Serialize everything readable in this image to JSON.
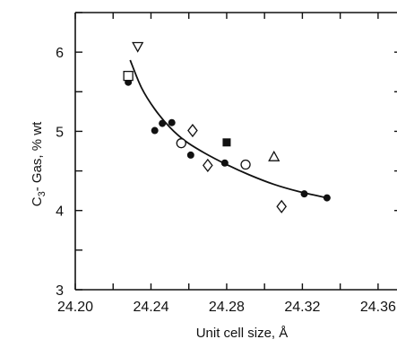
{
  "chart_data": {
    "type": "scatter",
    "title": "",
    "xlabel": "Unit cell size, Å",
    "ylabel_main": "C",
    "ylabel_sub": "3",
    "ylabel_rest": "- Gas, % wt",
    "xlim": [
      24.2,
      24.37
    ],
    "ylim": [
      3,
      6.5
    ],
    "x_ticks": [
      24.2,
      24.24,
      24.28,
      24.32,
      24.36
    ],
    "x_tick_labels": [
      "24.20",
      "24.24",
      "24.28",
      "24.32",
      "24.36"
    ],
    "y_ticks": [
      3,
      4,
      5,
      6
    ],
    "y_tick_labels": [
      "3",
      "4",
      "5",
      "6"
    ],
    "grid": false,
    "series": [
      {
        "marker": "filled-circle",
        "color": "#111111",
        "points": [
          [
            24.228,
            5.62
          ],
          [
            24.242,
            5.01
          ],
          [
            24.246,
            5.1
          ],
          [
            24.251,
            5.11
          ],
          [
            24.261,
            4.7
          ],
          [
            24.279,
            4.6
          ],
          [
            24.321,
            4.21
          ],
          [
            24.333,
            4.16
          ]
        ]
      },
      {
        "marker": "open-circle",
        "color": "#111111",
        "points": [
          [
            24.256,
            4.85
          ],
          [
            24.29,
            4.58
          ]
        ]
      },
      {
        "marker": "open-square",
        "color": "#111111",
        "points": [
          [
            24.228,
            5.7
          ]
        ]
      },
      {
        "marker": "filled-square",
        "color": "#111111",
        "points": [
          [
            24.28,
            4.86
          ]
        ]
      },
      {
        "marker": "open-triangle-down",
        "color": "#111111",
        "points": [
          [
            24.233,
            6.07
          ]
        ]
      },
      {
        "marker": "open-triangle-up",
        "color": "#111111",
        "points": [
          [
            24.305,
            4.68
          ]
        ]
      },
      {
        "marker": "open-diamond",
        "color": "#111111",
        "points": [
          [
            24.262,
            5.01
          ],
          [
            24.27,
            4.57
          ],
          [
            24.309,
            4.05
          ]
        ]
      }
    ],
    "fit_curve": {
      "color": "#111111",
      "points": [
        [
          24.229,
          5.9
        ],
        [
          24.235,
          5.55
        ],
        [
          24.242,
          5.28
        ],
        [
          24.25,
          5.05
        ],
        [
          24.258,
          4.88
        ],
        [
          24.268,
          4.73
        ],
        [
          24.28,
          4.58
        ],
        [
          24.292,
          4.45
        ],
        [
          24.305,
          4.33
        ],
        [
          24.318,
          4.24
        ],
        [
          24.333,
          4.16
        ]
      ]
    }
  }
}
